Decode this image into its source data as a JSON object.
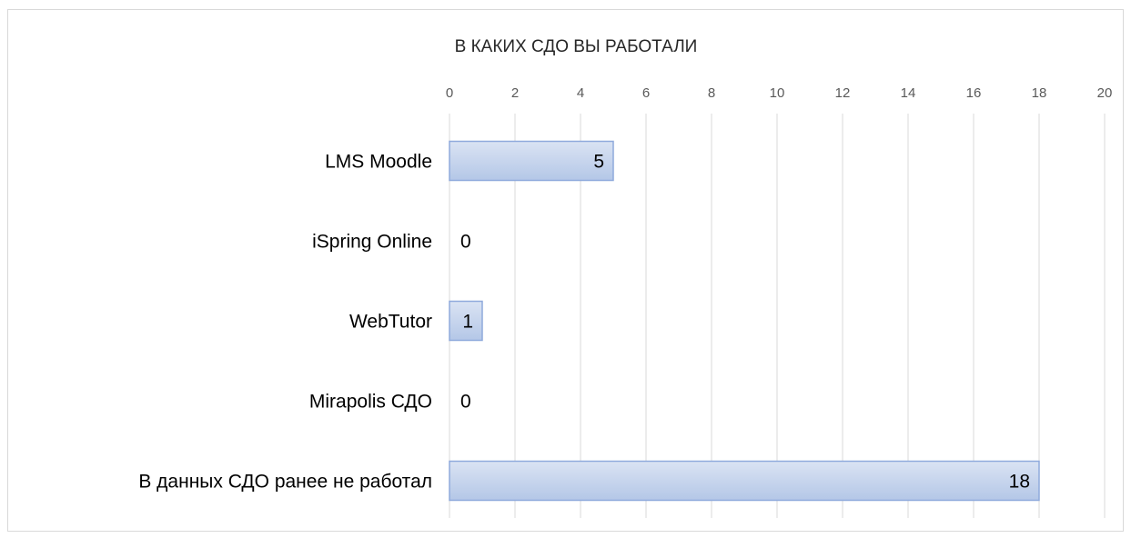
{
  "chart_data": {
    "type": "bar",
    "orientation": "horizontal",
    "title": "В КАКИХ СДО ВЫ РАБОТАЛИ",
    "categories": [
      "LMS Moodle",
      "iSpring Online",
      "WebTutor",
      "Mirapolis СДО",
      "В данных СДО ранее не работал"
    ],
    "values": [
      5,
      0,
      1,
      0,
      18
    ],
    "color": "#b4c7e7",
    "xlim": [
      0,
      20
    ],
    "xticks": [
      0,
      2,
      4,
      6,
      8,
      10,
      12,
      14,
      16,
      18,
      20
    ],
    "grid": true
  }
}
